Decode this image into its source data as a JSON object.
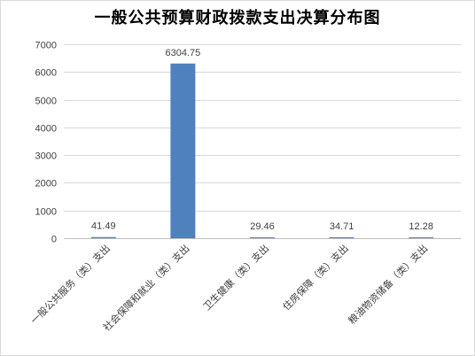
{
  "chart_data": {
    "type": "bar",
    "title": "一般公共预算财政拨款支出决算分布图",
    "categories": [
      "一般公共服务（类）支出",
      "社会保障和就业（类）支出",
      "卫生健康（类）支出",
      "住房保障（类）支出",
      "粮油物资储备（类）支出"
    ],
    "values": [
      41.49,
      6304.75,
      29.46,
      34.71,
      12.28
    ],
    "data_labels": [
      "41.49",
      "6304.75",
      "29.46",
      "34.71",
      "12.28"
    ],
    "ylim": [
      0,
      7000
    ],
    "yticks": [
      0,
      1000,
      2000,
      3000,
      4000,
      5000,
      6000,
      7000
    ],
    "grid": true,
    "legend": "none",
    "colors": {
      "bar": "#4e81bd",
      "grid": "#d9d9d9",
      "axis": "#bfbfbf",
      "text": "#404040"
    }
  }
}
